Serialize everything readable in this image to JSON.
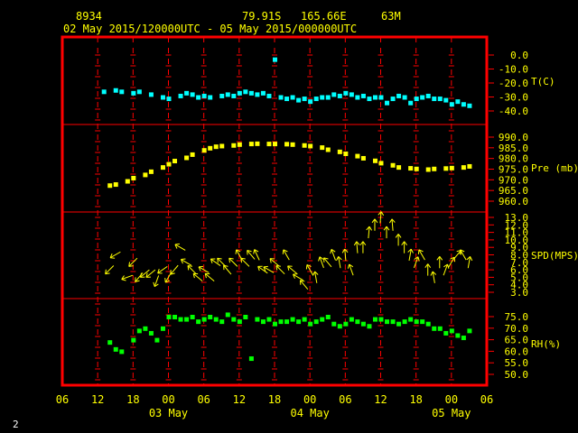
{
  "header": {
    "station": "8934",
    "location": "79.91S   165.66E",
    "elevation": "63M",
    "period": "02 May 2015/120000UTC - 05 May 2015/000000UTC"
  },
  "footer": {
    "page": "2"
  },
  "colors": {
    "frame": "#ff0000",
    "tick": "#ff0000",
    "temperature": "#00ffff",
    "pressure": "#ffff00",
    "wind": "#ffff00",
    "humidity": "#00ff00",
    "labels": "#ffff00"
  },
  "chart_data": {
    "type": "scatter",
    "x_axis": {
      "unit": "hours since 02 May 2015 06UTC",
      "range": [
        0,
        72
      ],
      "tick_labels": [
        "06",
        "12",
        "18",
        "00",
        "06",
        "12",
        "18",
        "00",
        "06",
        "12",
        "18",
        "00",
        "06"
      ],
      "day_labels": [
        {
          "label": "03 May",
          "hour": 18
        },
        {
          "label": "04 May",
          "hour": 42
        },
        {
          "label": "05 May",
          "hour": 66
        }
      ]
    },
    "panels": [
      {
        "name": "T(C)",
        "ylim": [
          -40,
          0
        ],
        "tick_labels": [
          "0.0",
          "-10.0",
          "-20.0",
          "-30.0",
          "-40.0"
        ],
        "tick_values": [
          0,
          -10,
          -20,
          -30,
          -40
        ],
        "x": [
          7,
          9,
          10,
          12,
          13,
          15,
          17,
          18,
          20,
          21,
          22,
          23,
          24,
          25,
          27,
          28,
          29,
          30,
          31,
          32,
          33,
          34,
          35,
          36,
          37,
          38,
          39,
          40,
          41,
          42,
          43,
          44,
          45,
          46,
          47,
          48,
          49,
          50,
          51,
          52,
          53,
          54,
          55,
          56,
          57,
          58,
          59,
          60,
          61,
          62,
          63,
          64,
          65,
          66,
          67,
          68,
          69
        ],
        "values": [
          -26,
          -25,
          -26,
          -27,
          -26,
          -28,
          -30,
          -31,
          -29,
          -27,
          -28,
          -30,
          -29,
          -30,
          -29,
          -28,
          -29,
          -27,
          -26,
          -27,
          -28,
          -27,
          -29,
          -3,
          -30,
          -31,
          -30,
          -32,
          -31,
          -33,
          -31,
          -30,
          -30,
          -28,
          -29,
          -27,
          -28,
          -30,
          -29,
          -31,
          -30,
          -30,
          -34,
          -31,
          -29,
          -30,
          -34,
          -31,
          -30,
          -29,
          -31,
          -31,
          -32,
          -35,
          -33,
          -35,
          -36
        ]
      },
      {
        "name": "Pre (mb)",
        "ylim": [
          960,
          990
        ],
        "tick_labels": [
          "990.0",
          "985.0",
          "980.0",
          "975.0",
          "970.0",
          "965.0",
          "960.0"
        ],
        "tick_values": [
          990,
          985,
          980,
          975,
          970,
          965,
          960
        ],
        "x": [
          8,
          9,
          11,
          12,
          14,
          15,
          17,
          18,
          19,
          21,
          22,
          24,
          25,
          26,
          27,
          29,
          30,
          32,
          33,
          35,
          36,
          38,
          39,
          41,
          42,
          44,
          45,
          47,
          48,
          50,
          51,
          53,
          54,
          56,
          57,
          59,
          60,
          62,
          63,
          65,
          66,
          68,
          69
        ],
        "values": [
          967.5,
          968,
          969.5,
          971,
          972.5,
          974,
          976,
          977.5,
          979,
          980.5,
          982,
          984,
          985,
          985.7,
          986,
          986.3,
          986.7,
          987,
          987.1,
          987,
          987,
          986.9,
          986.7,
          986.3,
          986,
          985.3,
          984.3,
          983.3,
          982.4,
          981.3,
          980.3,
          979.1,
          978,
          977,
          976,
          975.6,
          975.3,
          975,
          975.3,
          975.5,
          975.7,
          976,
          976.5
        ]
      },
      {
        "name": "SPD(MPS)",
        "ylim": [
          3,
          13
        ],
        "tick_labels": [
          "13.0",
          "12.0",
          "11.0",
          "10.0",
          "9.0",
          "8.0",
          "7.0",
          "6.0",
          "5.0",
          "4.0",
          "3.0"
        ],
        "tick_values": [
          13,
          12,
          11,
          10,
          9,
          8,
          7,
          6,
          5,
          4,
          3
        ],
        "x": [
          8,
          9,
          11,
          12,
          13,
          14,
          15,
          16,
          17,
          18,
          19,
          20,
          21,
          22,
          23,
          24,
          25,
          26,
          27,
          28,
          29,
          30,
          31,
          32,
          33,
          34,
          35,
          36,
          37,
          38,
          39,
          40,
          41,
          42,
          43,
          44,
          45,
          46,
          47,
          48,
          49,
          50,
          51,
          52,
          53,
          54,
          55,
          56,
          57,
          58,
          59,
          60,
          61,
          62,
          63,
          64,
          65,
          66,
          67,
          68,
          69
        ],
        "values": [
          6,
          8,
          5,
          7,
          5,
          5.5,
          5.5,
          4.5,
          6,
          5,
          6,
          9,
          7,
          6,
          5,
          6,
          5,
          7,
          7,
          6,
          7,
          8,
          7,
          8,
          8,
          6,
          6,
          7,
          6,
          8,
          6,
          5,
          4,
          6,
          5,
          7,
          7,
          8,
          7,
          8,
          6,
          9,
          9,
          11,
          12,
          13,
          11,
          12,
          10,
          9,
          8,
          7,
          8,
          6,
          5,
          7,
          6,
          7,
          8,
          8,
          7
        ],
        "directions_deg": [
          225,
          240,
          250,
          225,
          220,
          230,
          230,
          200,
          235,
          210,
          220,
          300,
          300,
          315,
          310,
          300,
          310,
          305,
          315,
          320,
          315,
          330,
          315,
          320,
          335,
          305,
          300,
          310,
          315,
          330,
          310,
          300,
          320,
          330,
          350,
          340,
          320,
          340,
          350,
          355,
          340,
          355,
          0,
          5,
          0,
          5,
          0,
          355,
          0,
          0,
          10,
          20,
          330,
          0,
          350,
          0,
          20,
          30,
          40,
          330,
          10
        ]
      },
      {
        "name": "RH(%)",
        "ylim": [
          50,
          75
        ],
        "tick_labels": [
          "75.0",
          "70.0",
          "65.0",
          "60.0",
          "55.0",
          "50.0"
        ],
        "tick_values": [
          75,
          70,
          65,
          60,
          55,
          50
        ],
        "x": [
          8,
          9,
          10,
          12,
          13,
          14,
          15,
          16,
          17,
          18,
          19,
          20,
          21,
          22,
          23,
          24,
          25,
          26,
          27,
          28,
          29,
          30,
          31,
          32,
          33,
          34,
          35,
          36,
          37,
          38,
          39,
          40,
          41,
          42,
          43,
          44,
          45,
          46,
          47,
          48,
          49,
          50,
          51,
          52,
          53,
          54,
          55,
          56,
          57,
          58,
          59,
          60,
          61,
          62,
          63,
          64,
          65,
          66,
          67,
          68,
          69
        ],
        "values": [
          64,
          61,
          60,
          65,
          69,
          70,
          68,
          65,
          70,
          75,
          75,
          74,
          74,
          75,
          73,
          74,
          75,
          74,
          73,
          76,
          74,
          73,
          75,
          57,
          74,
          73,
          74,
          72,
          73,
          73,
          74,
          73,
          74,
          72,
          73,
          74,
          75,
          72,
          71,
          72,
          74,
          73,
          72,
          71,
          74,
          74,
          73,
          73,
          72,
          73,
          74,
          73,
          73,
          72,
          70,
          70,
          68,
          69,
          67,
          66,
          69
        ]
      }
    ],
    "grid": true,
    "legend": "right-axis labels"
  }
}
